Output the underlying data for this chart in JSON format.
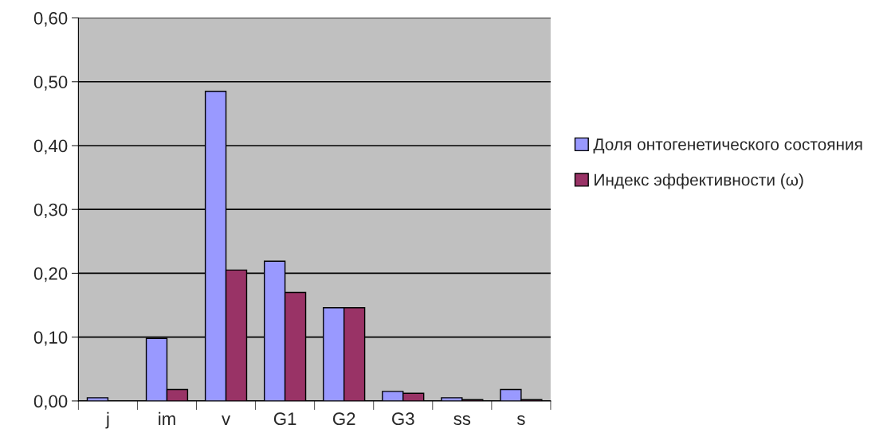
{
  "chart_data": {
    "type": "bar",
    "categories": [
      "j",
      "im",
      "v",
      "G1",
      "G2",
      "G3",
      "ss",
      "s"
    ],
    "series": [
      {
        "name": "Доля онтогенетического состояния",
        "color": "#9999ff",
        "values": [
          0.005,
          0.098,
          0.485,
          0.219,
          0.146,
          0.015,
          0.005,
          0.018
        ]
      },
      {
        "name": "Индекс эффективности (ω)",
        "color": "#993366",
        "values": [
          null,
          0.018,
          0.205,
          0.17,
          0.146,
          0.012,
          0.002,
          0.002
        ]
      }
    ],
    "ylim": [
      0,
      0.6
    ],
    "yticks": [
      {
        "value": 0,
        "label": "0,00"
      },
      {
        "value": 0.1,
        "label": "0,10"
      },
      {
        "value": 0.2,
        "label": "0,20"
      },
      {
        "value": 0.3,
        "label": "0,30"
      },
      {
        "value": 0.4,
        "label": "0,40"
      },
      {
        "value": 0.5,
        "label": "0,50"
      },
      {
        "value": 0.6,
        "label": "0,60"
      }
    ],
    "grid": "y",
    "legend": "right"
  }
}
